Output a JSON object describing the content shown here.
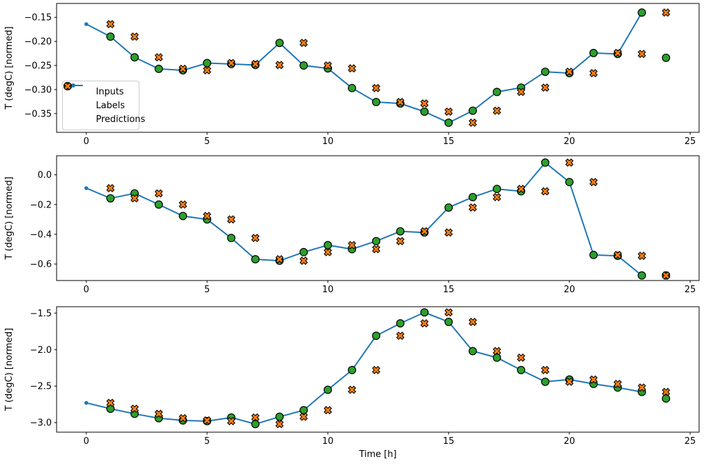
{
  "figure": {
    "background": "#ffffff"
  },
  "chart_data": {
    "type": "line",
    "title": "",
    "xlabel": "Time [h]",
    "legend": [
      "Inputs",
      "Labels",
      "Predictions"
    ],
    "legend_position": "upper-left-of-first-subplot",
    "grid": false,
    "xlim": [
      -1.23,
      25.37
    ],
    "x_ticks": {
      "values": [
        0,
        5,
        10,
        15,
        20,
        25
      ],
      "labels": [
        "0",
        "5",
        "10",
        "15",
        "20",
        "25"
      ]
    },
    "colors": {
      "inputs_line": "#1f77b4",
      "labels_marker": "#2ca02c",
      "predictions_marker": "#ff7f0e",
      "marker_edge": "#000000",
      "spine": "#000000"
    },
    "subplots": [
      {
        "ylabel": "T (degC) [normed]",
        "ylim": [
          -0.389,
          -0.121
        ],
        "y_ticks": {
          "values": [
            -0.15,
            -0.2,
            -0.25,
            -0.3,
            -0.35
          ],
          "labels": [
            "−0.15",
            "−0.20",
            "−0.25",
            "−0.30",
            "−0.35"
          ]
        },
        "inputs": {
          "x": [
            0,
            1,
            2,
            3,
            4,
            5,
            6,
            7,
            8,
            9,
            10,
            11,
            12,
            13,
            14,
            15,
            16,
            17,
            18,
            19,
            20,
            21,
            22,
            23
          ],
          "y": [
            -0.164,
            -0.19,
            -0.233,
            -0.257,
            -0.26,
            -0.245,
            -0.247,
            -0.249,
            -0.203,
            -0.25,
            -0.256,
            -0.297,
            -0.326,
            -0.329,
            -0.346,
            -0.369,
            -0.344,
            -0.305,
            -0.296,
            -0.263,
            -0.266,
            -0.224,
            -0.226,
            -0.14
          ]
        },
        "labels": {
          "x": [
            1,
            2,
            3,
            4,
            5,
            6,
            7,
            8,
            9,
            10,
            11,
            12,
            13,
            14,
            15,
            16,
            17,
            18,
            19,
            20,
            21,
            22,
            23,
            24
          ],
          "y": [
            -0.19,
            -0.233,
            -0.257,
            -0.26,
            -0.245,
            -0.247,
            -0.249,
            -0.203,
            -0.25,
            -0.256,
            -0.297,
            -0.326,
            -0.329,
            -0.346,
            -0.369,
            -0.344,
            -0.305,
            -0.296,
            -0.263,
            -0.266,
            -0.224,
            -0.226,
            -0.14,
            -0.234
          ]
        },
        "predictions": {
          "x": [
            1,
            2,
            3,
            4,
            5,
            6,
            7,
            8,
            9,
            10,
            11,
            12,
            13,
            14,
            15,
            16,
            17,
            18,
            19,
            20,
            21,
            22,
            23,
            24
          ],
          "y": [
            -0.164,
            -0.19,
            -0.233,
            -0.257,
            -0.26,
            -0.245,
            -0.247,
            -0.249,
            -0.203,
            -0.25,
            -0.256,
            -0.297,
            -0.326,
            -0.329,
            -0.346,
            -0.369,
            -0.344,
            -0.305,
            -0.296,
            -0.263,
            -0.266,
            -0.224,
            -0.226,
            -0.14
          ]
        }
      },
      {
        "ylabel": "T (degC) [normed]",
        "ylim": [
          -0.711,
          0.128
        ],
        "y_ticks": {
          "values": [
            0.0,
            -0.2,
            -0.4,
            -0.6
          ],
          "labels": [
            "0.0",
            "−0.2",
            "−0.4",
            "−0.6"
          ]
        },
        "inputs": {
          "x": [
            0,
            1,
            2,
            3,
            4,
            5,
            6,
            7,
            8,
            9,
            10,
            11,
            12,
            13,
            14,
            15,
            16,
            17,
            18,
            19,
            20,
            21,
            22,
            23
          ],
          "y": [
            -0.09,
            -0.158,
            -0.125,
            -0.2,
            -0.277,
            -0.3,
            -0.425,
            -0.568,
            -0.578,
            -0.52,
            -0.473,
            -0.5,
            -0.446,
            -0.38,
            -0.388,
            -0.22,
            -0.15,
            -0.095,
            -0.111,
            0.082,
            -0.049,
            -0.539,
            -0.545,
            -0.677
          ]
        },
        "labels": {
          "x": [
            1,
            2,
            3,
            4,
            5,
            6,
            7,
            8,
            9,
            10,
            11,
            12,
            13,
            14,
            15,
            16,
            17,
            18,
            19,
            20,
            21,
            22,
            23,
            24
          ],
          "y": [
            -0.158,
            -0.125,
            -0.2,
            -0.277,
            -0.3,
            -0.425,
            -0.568,
            -0.578,
            -0.52,
            -0.473,
            -0.5,
            -0.446,
            -0.38,
            -0.388,
            -0.22,
            -0.15,
            -0.095,
            -0.111,
            0.082,
            -0.049,
            -0.539,
            -0.545,
            -0.677,
            -0.677
          ]
        },
        "predictions": {
          "x": [
            1,
            2,
            3,
            4,
            5,
            6,
            7,
            8,
            9,
            10,
            11,
            12,
            13,
            14,
            15,
            16,
            17,
            18,
            19,
            20,
            21,
            22,
            23,
            24
          ],
          "y": [
            -0.09,
            -0.158,
            -0.125,
            -0.2,
            -0.277,
            -0.3,
            -0.425,
            -0.568,
            -0.578,
            -0.52,
            -0.473,
            -0.5,
            -0.446,
            -0.38,
            -0.388,
            -0.22,
            -0.15,
            -0.095,
            -0.111,
            0.082,
            -0.049,
            -0.539,
            -0.545,
            -0.677
          ]
        }
      },
      {
        "ylabel": "T (degC) [normed]",
        "ylim": [
          -3.131,
          -1.412
        ],
        "y_ticks": {
          "values": [
            -1.5,
            -2.0,
            -2.5,
            -3.0
          ],
          "labels": [
            "−1.5",
            "−2.0",
            "−2.5",
            "−3.0"
          ]
        },
        "inputs": {
          "x": [
            0,
            1,
            2,
            3,
            4,
            5,
            6,
            7,
            8,
            9,
            10,
            11,
            12,
            13,
            14,
            15,
            16,
            17,
            18,
            19,
            20,
            21,
            22,
            23
          ],
          "y": [
            -2.73,
            -2.81,
            -2.88,
            -2.94,
            -2.97,
            -2.98,
            -2.93,
            -3.02,
            -2.92,
            -2.83,
            -2.55,
            -2.28,
            -1.81,
            -1.64,
            -1.49,
            -1.62,
            -2.02,
            -2.11,
            -2.28,
            -2.44,
            -2.41,
            -2.47,
            -2.52,
            -2.58
          ]
        },
        "labels": {
          "x": [
            1,
            2,
            3,
            4,
            5,
            6,
            7,
            8,
            9,
            10,
            11,
            12,
            13,
            14,
            15,
            16,
            17,
            18,
            19,
            20,
            21,
            22,
            23,
            24
          ],
          "y": [
            -2.81,
            -2.88,
            -2.94,
            -2.97,
            -2.98,
            -2.93,
            -3.02,
            -2.92,
            -2.83,
            -2.55,
            -2.28,
            -1.81,
            -1.64,
            -1.49,
            -1.62,
            -2.02,
            -2.11,
            -2.28,
            -2.44,
            -2.41,
            -2.47,
            -2.52,
            -2.58,
            -2.67
          ]
        },
        "predictions": {
          "x": [
            1,
            2,
            3,
            4,
            5,
            6,
            7,
            8,
            9,
            10,
            11,
            12,
            13,
            14,
            15,
            16,
            17,
            18,
            19,
            20,
            21,
            22,
            23,
            24
          ],
          "y": [
            -2.73,
            -2.81,
            -2.88,
            -2.94,
            -2.97,
            -2.98,
            -2.93,
            -3.02,
            -2.92,
            -2.83,
            -2.55,
            -2.28,
            -1.81,
            -1.64,
            -1.49,
            -1.62,
            -2.02,
            -2.11,
            -2.28,
            -2.44,
            -2.41,
            -2.47,
            -2.52,
            -2.58
          ]
        }
      }
    ]
  }
}
